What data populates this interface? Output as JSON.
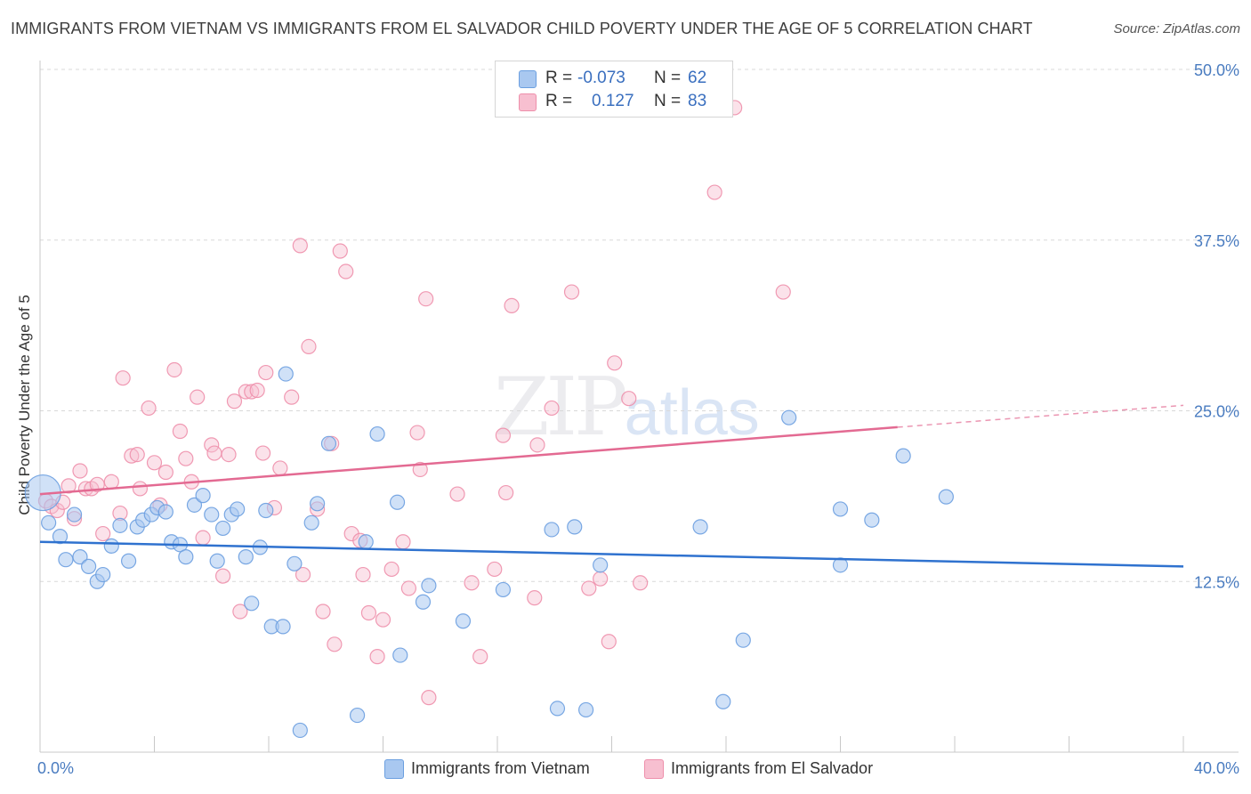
{
  "title": "IMMIGRANTS FROM VIETNAM VS IMMIGRANTS FROM EL SALVADOR CHILD POVERTY UNDER THE AGE OF 5 CORRELATION CHART",
  "source": "Source: ZipAtlas.com",
  "watermark": {
    "zip": "ZIP",
    "atlas": "atlas"
  },
  "legend": {
    "vietnam": {
      "r_label": "R =",
      "r_value": "-0.073",
      "n_label": "N =",
      "n_value": "62"
    },
    "salvador": {
      "r_label": "R =",
      "r_value": "0.127",
      "n_label": "N =",
      "n_value": "83"
    }
  },
  "bottom_legend": {
    "vietnam": "Immigrants from Vietnam",
    "salvador": "Immigrants from El Salvador"
  },
  "colors": {
    "vietnam_fill": "#a9c8f0",
    "vietnam_stroke": "#6b9fe0",
    "vietnam_line": "#2f72cf",
    "salvador_fill": "#f7bfd0",
    "salvador_stroke": "#ee8fab",
    "salvador_line": "#e36a92",
    "grid": "#d9d9d9",
    "tick_label": "#4a7cc0"
  },
  "chart_data": {
    "type": "scatter",
    "title": "IMMIGRANTS FROM VIETNAM VS IMMIGRANTS FROM EL SALVADOR CHILD POVERTY UNDER THE AGE OF 5 CORRELATION CHART",
    "xlabel": "",
    "ylabel": "Child Poverty Under the Age of 5",
    "xlim": [
      0,
      40
    ],
    "ylim": [
      0,
      50
    ],
    "x_tick_labels": [
      "0.0%",
      "40.0%"
    ],
    "y_ticks": [
      12.5,
      25.0,
      37.5,
      50.0
    ],
    "y_tick_labels": [
      "12.5%",
      "25.0%",
      "37.5%",
      "50.0%"
    ],
    "grid": true,
    "legend_position": "top-center",
    "series": [
      {
        "name": "Immigrants from Vietnam",
        "r": -0.073,
        "n": 62,
        "trend": {
          "x": [
            0,
            40
          ],
          "y": [
            15.4,
            13.6
          ]
        },
        "points": [
          {
            "x": 0.1,
            "y": 19.0,
            "big": true
          },
          {
            "x": 0.3,
            "y": 16.8
          },
          {
            "x": 0.7,
            "y": 15.8
          },
          {
            "x": 0.9,
            "y": 14.1
          },
          {
            "x": 1.2,
            "y": 17.4
          },
          {
            "x": 1.4,
            "y": 14.3
          },
          {
            "x": 1.7,
            "y": 13.6
          },
          {
            "x": 2.0,
            "y": 12.5
          },
          {
            "x": 2.2,
            "y": 13.0
          },
          {
            "x": 2.5,
            "y": 15.1
          },
          {
            "x": 2.8,
            "y": 16.6
          },
          {
            "x": 3.1,
            "y": 14.0
          },
          {
            "x": 3.4,
            "y": 16.5
          },
          {
            "x": 3.6,
            "y": 17.0
          },
          {
            "x": 3.9,
            "y": 17.4
          },
          {
            "x": 4.1,
            "y": 17.9
          },
          {
            "x": 4.4,
            "y": 17.6
          },
          {
            "x": 4.6,
            "y": 15.4
          },
          {
            "x": 4.9,
            "y": 15.2
          },
          {
            "x": 5.1,
            "y": 14.3
          },
          {
            "x": 5.4,
            "y": 18.1
          },
          {
            "x": 5.7,
            "y": 18.8
          },
          {
            "x": 6.0,
            "y": 17.4
          },
          {
            "x": 6.2,
            "y": 14.0
          },
          {
            "x": 6.4,
            "y": 16.4
          },
          {
            "x": 6.7,
            "y": 17.4
          },
          {
            "x": 6.9,
            "y": 17.8
          },
          {
            "x": 7.2,
            "y": 14.3
          },
          {
            "x": 7.4,
            "y": 10.9
          },
          {
            "x": 7.7,
            "y": 15.0
          },
          {
            "x": 7.9,
            "y": 17.7
          },
          {
            "x": 8.1,
            "y": 9.2
          },
          {
            "x": 8.5,
            "y": 9.2
          },
          {
            "x": 8.6,
            "y": 27.7
          },
          {
            "x": 8.9,
            "y": 13.8
          },
          {
            "x": 9.1,
            "y": 1.6
          },
          {
            "x": 9.5,
            "y": 16.8
          },
          {
            "x": 9.7,
            "y": 18.2
          },
          {
            "x": 10.1,
            "y": 22.6
          },
          {
            "x": 11.1,
            "y": 2.7
          },
          {
            "x": 11.4,
            "y": 15.4
          },
          {
            "x": 11.8,
            "y": 23.3
          },
          {
            "x": 12.5,
            "y": 18.3
          },
          {
            "x": 12.6,
            "y": 7.1
          },
          {
            "x": 13.4,
            "y": 11.0
          },
          {
            "x": 13.6,
            "y": 12.2
          },
          {
            "x": 14.8,
            "y": 9.6
          },
          {
            "x": 16.2,
            "y": 11.9
          },
          {
            "x": 17.9,
            "y": 16.3
          },
          {
            "x": 18.1,
            "y": 3.2
          },
          {
            "x": 18.7,
            "y": 16.5
          },
          {
            "x": 19.1,
            "y": 3.1
          },
          {
            "x": 19.6,
            "y": 13.7
          },
          {
            "x": 23.1,
            "y": 16.5
          },
          {
            "x": 23.9,
            "y": 3.7
          },
          {
            "x": 24.6,
            "y": 8.2
          },
          {
            "x": 26.2,
            "y": 24.5
          },
          {
            "x": 28.0,
            "y": 17.8
          },
          {
            "x": 28.0,
            "y": 13.7
          },
          {
            "x": 29.1,
            "y": 17.0
          },
          {
            "x": 30.2,
            "y": 21.7
          },
          {
            "x": 31.7,
            "y": 18.7
          }
        ]
      },
      {
        "name": "Immigrants from El Salvador",
        "r": 0.127,
        "n": 83,
        "trend": {
          "x": [
            0,
            30
          ],
          "y": [
            18.9,
            23.8
          ],
          "dashed_to": [
            40,
            25.4
          ]
        },
        "points": [
          {
            "x": 0.2,
            "y": 18.4
          },
          {
            "x": 0.4,
            "y": 18.0
          },
          {
            "x": 0.6,
            "y": 17.7
          },
          {
            "x": 0.8,
            "y": 18.3
          },
          {
            "x": 1.0,
            "y": 19.5
          },
          {
            "x": 1.2,
            "y": 17.1
          },
          {
            "x": 1.4,
            "y": 20.6
          },
          {
            "x": 1.6,
            "y": 19.3
          },
          {
            "x": 1.8,
            "y": 19.3
          },
          {
            "x": 2.0,
            "y": 19.6
          },
          {
            "x": 2.2,
            "y": 16.0
          },
          {
            "x": 2.5,
            "y": 19.8
          },
          {
            "x": 2.8,
            "y": 17.5
          },
          {
            "x": 2.9,
            "y": 27.4
          },
          {
            "x": 3.2,
            "y": 21.7
          },
          {
            "x": 3.4,
            "y": 21.8
          },
          {
            "x": 3.5,
            "y": 19.3
          },
          {
            "x": 3.8,
            "y": 25.2
          },
          {
            "x": 4.0,
            "y": 21.2
          },
          {
            "x": 4.2,
            "y": 18.1
          },
          {
            "x": 4.4,
            "y": 20.5
          },
          {
            "x": 4.7,
            "y": 28.0
          },
          {
            "x": 4.9,
            "y": 23.5
          },
          {
            "x": 5.1,
            "y": 21.5
          },
          {
            "x": 5.3,
            "y": 19.8
          },
          {
            "x": 5.5,
            "y": 26.0
          },
          {
            "x": 5.7,
            "y": 15.7
          },
          {
            "x": 6.0,
            "y": 22.5
          },
          {
            "x": 6.1,
            "y": 21.9
          },
          {
            "x": 6.4,
            "y": 12.9
          },
          {
            "x": 6.6,
            "y": 21.8
          },
          {
            "x": 6.8,
            "y": 25.7
          },
          {
            "x": 7.0,
            "y": 10.3
          },
          {
            "x": 7.2,
            "y": 26.4
          },
          {
            "x": 7.4,
            "y": 26.4
          },
          {
            "x": 7.6,
            "y": 26.5
          },
          {
            "x": 7.8,
            "y": 21.9
          },
          {
            "x": 7.9,
            "y": 27.8
          },
          {
            "x": 8.2,
            "y": 17.9
          },
          {
            "x": 8.4,
            "y": 20.8
          },
          {
            "x": 8.8,
            "y": 26.0
          },
          {
            "x": 9.1,
            "y": 37.1
          },
          {
            "x": 9.2,
            "y": 13.0
          },
          {
            "x": 9.4,
            "y": 29.7
          },
          {
            "x": 9.7,
            "y": 17.8
          },
          {
            "x": 9.9,
            "y": 10.3
          },
          {
            "x": 10.2,
            "y": 22.6
          },
          {
            "x": 10.3,
            "y": 7.9
          },
          {
            "x": 10.5,
            "y": 36.7
          },
          {
            "x": 10.7,
            "y": 35.2
          },
          {
            "x": 10.9,
            "y": 16.0
          },
          {
            "x": 11.2,
            "y": 15.5
          },
          {
            "x": 11.3,
            "y": 13.0
          },
          {
            "x": 11.5,
            "y": 10.2
          },
          {
            "x": 11.8,
            "y": 7.0
          },
          {
            "x": 12.0,
            "y": 9.7
          },
          {
            "x": 12.3,
            "y": 13.4
          },
          {
            "x": 12.7,
            "y": 15.4
          },
          {
            "x": 12.9,
            "y": 12.0
          },
          {
            "x": 13.2,
            "y": 23.4
          },
          {
            "x": 13.3,
            "y": 20.7
          },
          {
            "x": 13.5,
            "y": 33.2
          },
          {
            "x": 13.6,
            "y": 4.0
          },
          {
            "x": 14.6,
            "y": 18.9
          },
          {
            "x": 15.1,
            "y": 12.4
          },
          {
            "x": 15.4,
            "y": 7.0
          },
          {
            "x": 15.9,
            "y": 13.4
          },
          {
            "x": 16.2,
            "y": 23.2
          },
          {
            "x": 16.3,
            "y": 19.0
          },
          {
            "x": 16.5,
            "y": 32.7
          },
          {
            "x": 17.3,
            "y": 11.3
          },
          {
            "x": 17.4,
            "y": 22.5
          },
          {
            "x": 17.9,
            "y": 25.2
          },
          {
            "x": 18.6,
            "y": 33.7
          },
          {
            "x": 19.2,
            "y": 12.0
          },
          {
            "x": 19.6,
            "y": 12.7
          },
          {
            "x": 19.9,
            "y": 8.1
          },
          {
            "x": 20.1,
            "y": 28.5
          },
          {
            "x": 20.6,
            "y": 25.9
          },
          {
            "x": 21.0,
            "y": 12.4
          },
          {
            "x": 23.6,
            "y": 41.0
          },
          {
            "x": 24.3,
            "y": 47.2
          },
          {
            "x": 26.0,
            "y": 33.7
          }
        ]
      }
    ]
  }
}
